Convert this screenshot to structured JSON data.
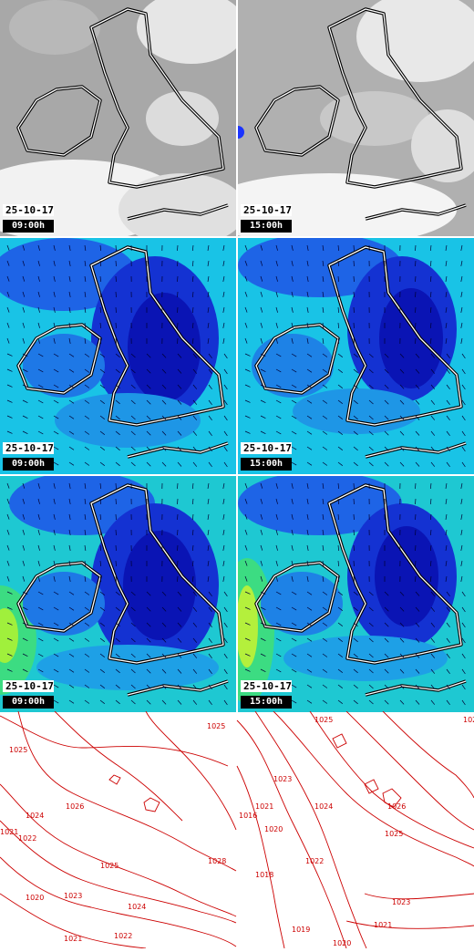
{
  "panels": [
    {
      "id": "cloud-0900",
      "date": "25-10-17",
      "time": "09:00h"
    },
    {
      "id": "cloud-1500",
      "date": "25-10-17",
      "time": "15:00h"
    },
    {
      "id": "wind-0900",
      "date": "25-10-17",
      "time": "09:00h"
    },
    {
      "id": "wind-1500",
      "date": "25-10-17",
      "time": "15:00h"
    },
    {
      "id": "gust-0900",
      "date": "25-10-17",
      "time": "09:00h"
    },
    {
      "id": "gust-1500",
      "date": "25-10-17",
      "time": "15:00h"
    }
  ],
  "isobars_left": [
    "1025",
    "1026",
    "1024",
    "1022",
    "1021",
    "1020",
    "1023",
    "1025",
    "1024",
    "1028",
    "1022",
    "1021",
    "1022"
  ],
  "isobars_right": [
    "1025",
    "1028",
    "1023",
    "1021",
    "1020",
    "1016",
    "1024",
    "1022",
    "1018",
    "1026",
    "1025",
    "1023",
    "1021",
    "1020",
    "1019"
  ],
  "colors": {
    "coast": "#ffffff",
    "coast_shadow": "#000000",
    "isobar": "#cc0000",
    "cloud_bg": "#a9a9a9",
    "wind_low": "#00c8e0",
    "wind_high": "#0000b4"
  }
}
